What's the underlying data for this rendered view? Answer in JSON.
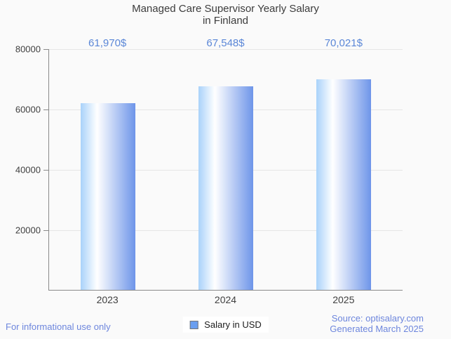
{
  "title": {
    "lines": [
      "Managed Care Supervisor Yearly Salary",
      "in Finland"
    ]
  },
  "chart_data": {
    "type": "bar",
    "title": "Managed Care Supervisor Yearly Salary in Finland",
    "categories": [
      "2023",
      "2024",
      "2025"
    ],
    "series": [
      {
        "name": "Salary in USD",
        "values": [
          61970,
          67548,
          70021
        ]
      }
    ],
    "value_labels": [
      "61,970$",
      "67,548$",
      "70,021$"
    ],
    "xlabel": "",
    "ylabel": "",
    "ylim": [
      0,
      80000
    ],
    "yticks": [
      80000,
      60000,
      40000,
      20000
    ],
    "ytick_labels": [
      "80000",
      "60000",
      "40000",
      "20000"
    ],
    "grid": true,
    "legend_position": "bottom",
    "bar_gradient": [
      "#a9d2fa",
      "#ffffff",
      "#6e95e9"
    ]
  },
  "legend": {
    "label": "Salary in USD",
    "swatch_icon": "legend-swatch",
    "swatch_color": "#6a9ef0"
  },
  "footer": {
    "left": "For informational use only",
    "source": "Source: optisalary.com",
    "generated": "Generated March 2025"
  },
  "colors": {
    "background": "#fafafa",
    "title": "#3c3c3c",
    "value_label": "#5b87d7",
    "axis_label": "#3f3f3f",
    "gridline": "#e6e6e6",
    "axis_line": "#8a8a8a",
    "footer_text": "#6d86dd"
  }
}
